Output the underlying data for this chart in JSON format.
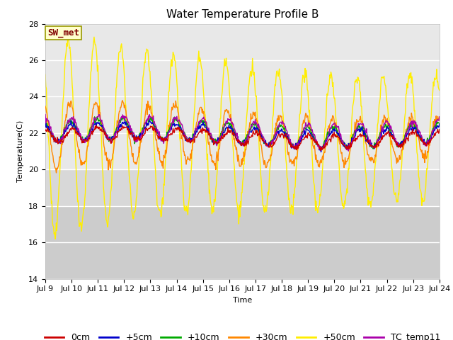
{
  "title": "Water Temperature Profile B",
  "xlabel": "Time",
  "ylabel": "Temperature(C)",
  "ylim": [
    14,
    28
  ],
  "xlim": [
    0,
    15
  ],
  "x_tick_labels": [
    "Jul 9",
    "Jul 10",
    "Jul 11",
    "Jul 12",
    "Jul 13",
    "Jul 14",
    "Jul 15",
    "Jul 16",
    "Jul 17",
    "Jul 18",
    "Jul 19",
    "Jul 20",
    "Jul 21",
    "Jul 22",
    "Jul 23",
    "Jul 24"
  ],
  "y_ticks": [
    14,
    16,
    18,
    20,
    22,
    24,
    26,
    28
  ],
  "series_colors": {
    "0cm": "#cc0000",
    "+5cm": "#0000cc",
    "+10cm": "#00aa00",
    "+30cm": "#ff8800",
    "+50cm": "#ffee00",
    "TC_temp11": "#aa00aa"
  },
  "legend_labels": [
    "0cm",
    "+5cm",
    "+10cm",
    "+30cm",
    "+50cm",
    "TC_temp11"
  ],
  "annotation_text": "SW_met",
  "annotation_color": "#800000",
  "annotation_bg": "#ffffcc",
  "annotation_edge": "#999900",
  "band_light": "#ececec",
  "band_mid": "#dcdcdc",
  "band_dark": "#cccccc",
  "title_fontsize": 11,
  "label_fontsize": 8,
  "tick_fontsize": 8,
  "legend_fontsize": 9
}
